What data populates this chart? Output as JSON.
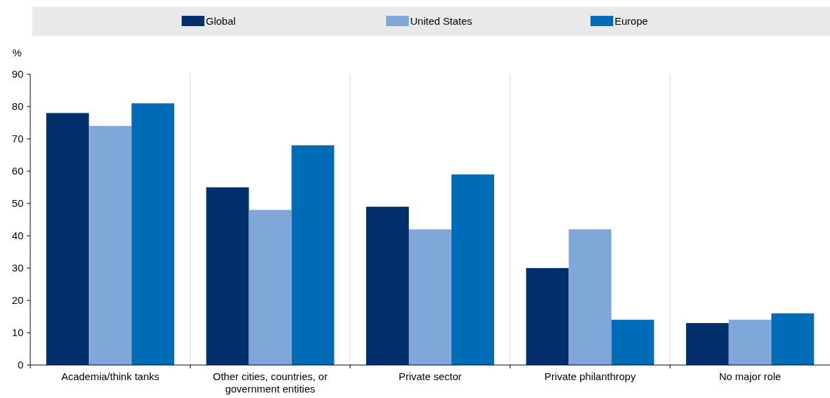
{
  "chart_data": {
    "type": "bar",
    "ylabel": "%",
    "categories": [
      "Academia/think tanks",
      "Other cities, countries, or government entities",
      "Private sector",
      "Private philanthropy",
      "No major role"
    ],
    "series": [
      {
        "name": "Global",
        "color": "#002f6c",
        "values": [
          78,
          55,
          49,
          30,
          13
        ]
      },
      {
        "name": "United States",
        "color": "#7fa8d9",
        "values": [
          74,
          48,
          42,
          42,
          14
        ]
      },
      {
        "name": "Europe",
        "color": "#006bb6",
        "values": [
          81,
          68,
          59,
          14,
          16
        ]
      }
    ],
    "ylim": [
      0,
      90
    ],
    "yticks": [
      0,
      10,
      20,
      30,
      40,
      50,
      60,
      70,
      80,
      90
    ],
    "grid": "x",
    "legend": "top"
  }
}
